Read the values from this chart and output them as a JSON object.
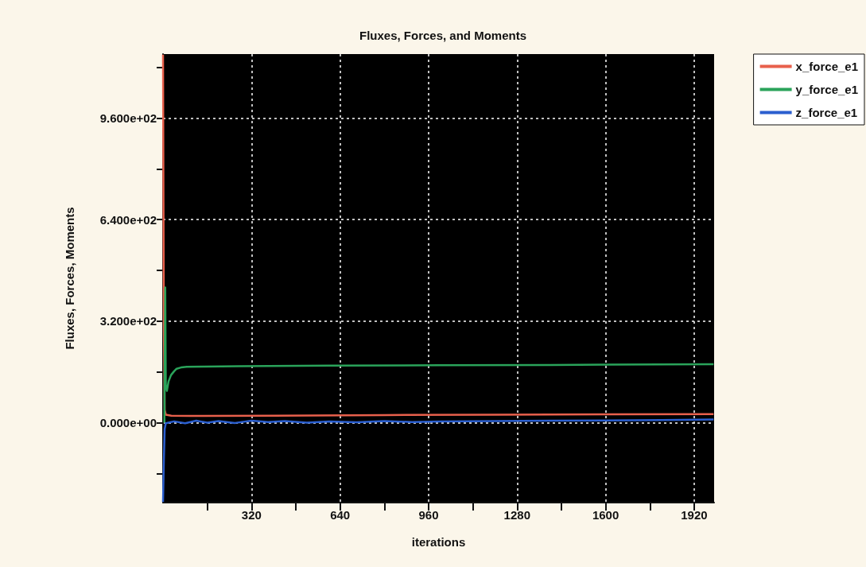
{
  "chart_data": {
    "type": "line",
    "title": "Fluxes, Forces, and Moments",
    "xlabel": "iterations",
    "ylabel": "Fluxes, Forces, Moments",
    "xlim": [
      0,
      1992
    ],
    "ylim": [
      -252,
      1162
    ],
    "xticks": [
      {
        "value": 160,
        "label": null
      },
      320,
      {
        "value": 480,
        "label": null
      },
      640,
      {
        "value": 800,
        "label": null
      },
      960,
      {
        "value": 1120,
        "label": null
      },
      1280,
      {
        "value": 1440,
        "label": null
      },
      1600,
      {
        "value": 1760,
        "label": null
      },
      1920
    ],
    "yticks": [
      {
        "value": -160,
        "label": null
      },
      {
        "value": 0,
        "label": "0.000e+00"
      },
      {
        "value": 160,
        "label": null
      },
      {
        "value": 320,
        "label": "3.200e+02"
      },
      {
        "value": 480,
        "label": null
      },
      {
        "value": 640,
        "label": "6.400e+02"
      },
      {
        "value": 800,
        "label": null
      },
      {
        "value": 960,
        "label": "9.600e+02"
      },
      {
        "value": 1120,
        "label": null
      }
    ],
    "grid": true,
    "legend": "top right",
    "marker": "none",
    "line_style": "solid",
    "series": [
      {
        "name": "x_force_e1",
        "color": "#e8604c",
        "x": [
          0,
          3,
          6,
          10,
          30,
          100,
          400,
          800,
          1200,
          1600,
          1990
        ],
        "values": [
          1160,
          300,
          40,
          25,
          22,
          21,
          22,
          24,
          25,
          26,
          27
        ]
      },
      {
        "name": "y_force_e1",
        "color": "#2aa35a",
        "x": [
          5,
          8,
          10,
          14,
          20,
          29,
          40,
          49,
          65,
          86,
          150,
          273,
          600,
          1000,
          1400,
          1990
        ],
        "values": [
          0,
          426,
          120,
          100,
          130,
          150,
          162,
          170,
          174,
          176,
          177,
          178,
          180,
          181,
          182,
          184
        ]
      },
      {
        "name": "z_force_e1",
        "color": "#2b5fcf",
        "x": [
          0,
          3,
          6,
          10,
          40,
          80,
          120,
          160,
          200,
          260,
          320,
          380,
          440,
          520,
          600,
          700,
          800,
          900,
          1000,
          1200,
          1400,
          1600,
          1800,
          1990
        ],
        "values": [
          -250,
          -120,
          -20,
          -2,
          4,
          -2,
          6,
          0,
          5,
          -1,
          6,
          2,
          5,
          0,
          4,
          1,
          5,
          2,
          4,
          5,
          6,
          7,
          8,
          10
        ]
      }
    ]
  }
}
